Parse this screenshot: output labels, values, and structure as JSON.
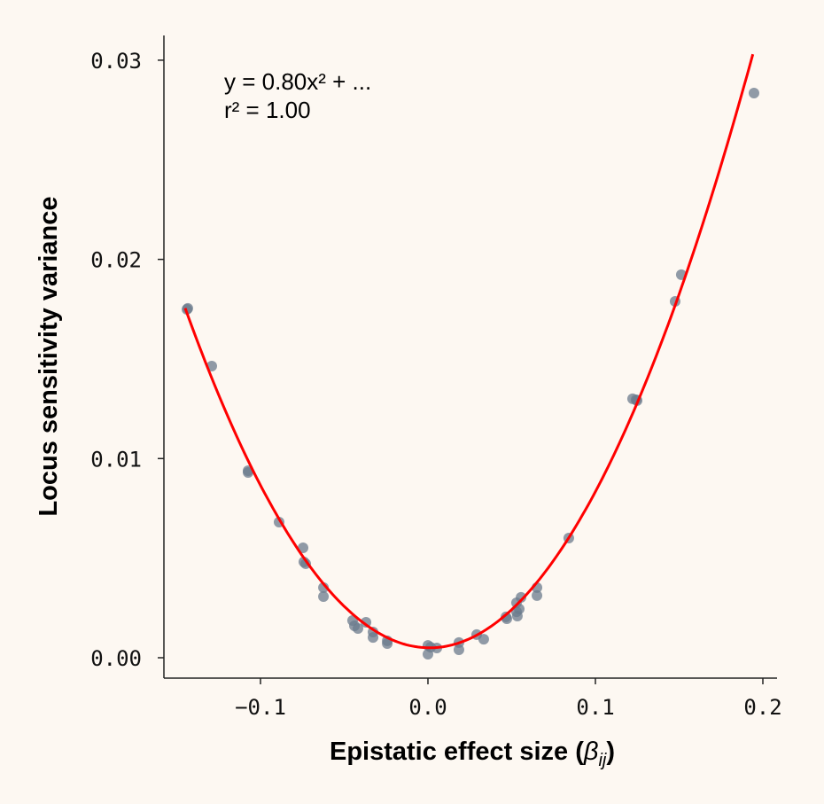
{
  "chart_data": {
    "type": "scatter",
    "xlabel": {
      "text": "Epistatic effect size (",
      "symbol": "β",
      "subscript": "ij",
      "suffix": ")"
    },
    "ylabel": "Locus sensitivity variance",
    "xlim": [
      -0.155,
      0.205
    ],
    "ylim": [
      -0.001,
      0.0313
    ],
    "xticks": [
      -0.1,
      0.0,
      0.1,
      0.2
    ],
    "xtick_labels": [
      "−0.1",
      "0.0",
      "0.1",
      "0.2"
    ],
    "yticks": [
      0.0,
      0.01,
      0.02,
      0.03
    ],
    "ytick_labels": [
      "0.00",
      "0.01",
      "0.02",
      "0.03"
    ],
    "grid": false,
    "annotation": [
      "y = 0.80x² + ...",
      "r² = 1.00"
    ],
    "fit": {
      "type": "quadratic",
      "a": 0.8,
      "b": -0.0016,
      "c": 0.0005,
      "x_range": [
        -0.145,
        0.194
      ],
      "color": "#ff0000"
    },
    "point_color": "#6b7b8c",
    "background": "#fdf8f2",
    "points": [
      [
        -0.1439,
        0.01749
      ],
      [
        -0.1434,
        0.01754
      ],
      [
        -0.1291,
        0.01464
      ],
      [
        -0.1074,
        0.00939
      ],
      [
        -0.1074,
        0.0093
      ],
      [
        -0.0889,
        0.00681
      ],
      [
        -0.0746,
        0.00552
      ],
      [
        -0.0741,
        0.00481
      ],
      [
        -0.073,
        0.00472
      ],
      [
        -0.0624,
        0.00352
      ],
      [
        -0.0624,
        0.00307
      ],
      [
        -0.045,
        0.00187
      ],
      [
        -0.0439,
        0.0016
      ],
      [
        -0.0418,
        0.00147
      ],
      [
        -0.037,
        0.00178
      ],
      [
        -0.0328,
        0.00129
      ],
      [
        -0.0328,
        0.00102
      ],
      [
        -0.0243,
        0.00085
      ],
      [
        -0.0243,
        0.00071
      ],
      [
        0.0,
        0.00062
      ],
      [
        0.0,
        0.00018
      ],
      [
        0.0016,
        0.00053
      ],
      [
        0.0053,
        0.00049
      ],
      [
        0.0185,
        0.00076
      ],
      [
        0.0185,
        0.0004
      ],
      [
        0.0291,
        0.00116
      ],
      [
        0.0333,
        0.00093
      ],
      [
        0.0466,
        0.00205
      ],
      [
        0.0471,
        0.00196
      ],
      [
        0.0529,
        0.00276
      ],
      [
        0.0529,
        0.00231
      ],
      [
        0.0534,
        0.00209
      ],
      [
        0.0545,
        0.00245
      ],
      [
        0.0556,
        0.00303
      ],
      [
        0.0651,
        0.00352
      ],
      [
        0.0651,
        0.00312
      ],
      [
        0.0841,
        0.00601
      ],
      [
        0.1222,
        0.013
      ],
      [
        0.1243,
        0.01295
      ],
      [
        0.1249,
        0.01291
      ],
      [
        0.1476,
        0.01789
      ],
      [
        0.1513,
        0.01923
      ],
      [
        0.1947,
        0.02835
      ]
    ]
  }
}
